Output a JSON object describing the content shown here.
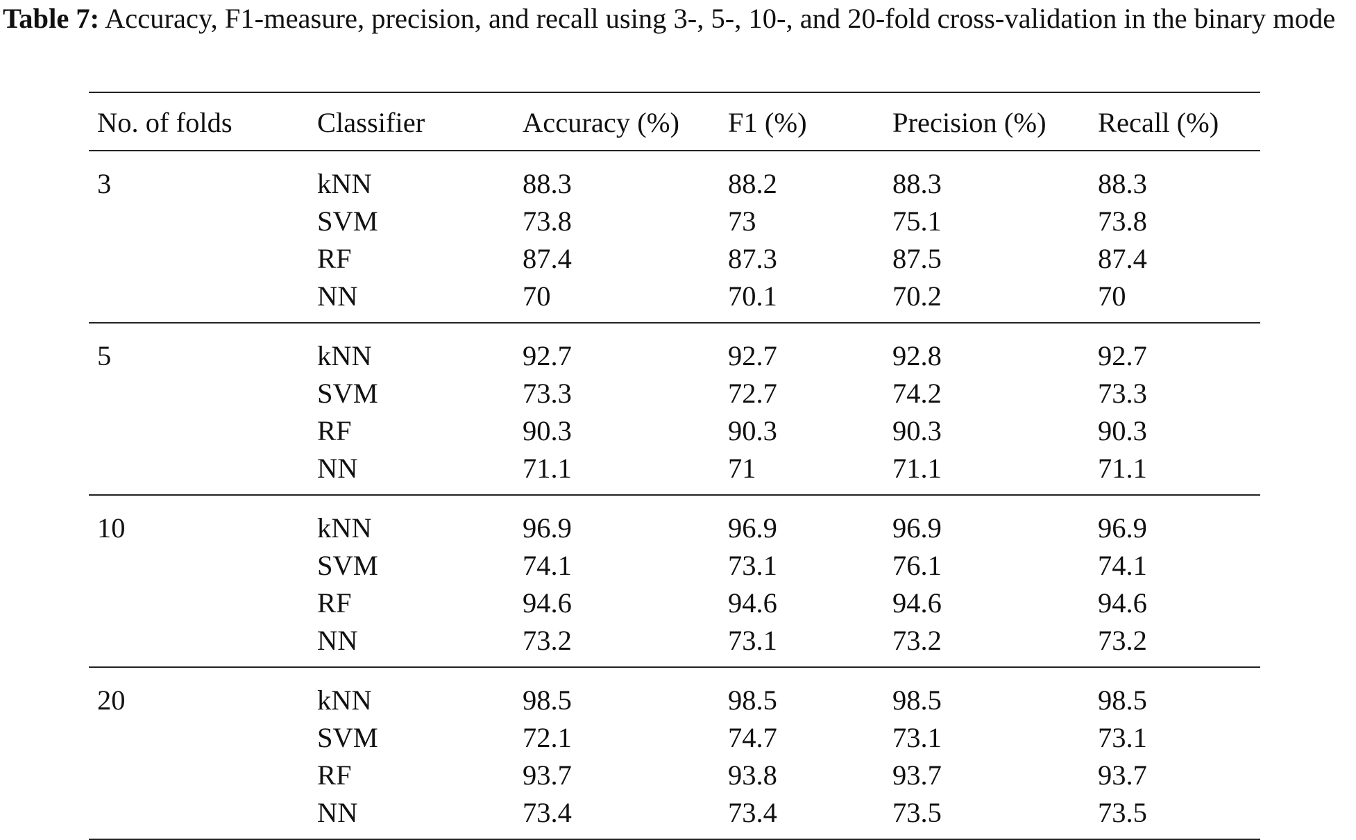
{
  "caption": {
    "label": "Table 7:",
    "text": " Accuracy, F1-measure, precision, and recall using 3-, 5-, 10-, and 20-fold cross-validation in the binary mode"
  },
  "table": {
    "headers": [
      "No. of folds",
      "Classifier",
      "Accuracy (%)",
      "F1 (%)",
      "Precision (%)",
      "Recall (%)"
    ],
    "groups": [
      {
        "folds": "3",
        "rows": [
          [
            "kNN",
            "88.3",
            "88.2",
            "88.3",
            "88.3"
          ],
          [
            "SVM",
            "73.8",
            "73",
            "75.1",
            "73.8"
          ],
          [
            "RF",
            "87.4",
            "87.3",
            "87.5",
            "87.4"
          ],
          [
            "NN",
            "70",
            "70.1",
            "70.2",
            "70"
          ]
        ]
      },
      {
        "folds": "5",
        "rows": [
          [
            "kNN",
            "92.7",
            "92.7",
            "92.8",
            "92.7"
          ],
          [
            "SVM",
            "73.3",
            "72.7",
            "74.2",
            "73.3"
          ],
          [
            "RF",
            "90.3",
            "90.3",
            "90.3",
            "90.3"
          ],
          [
            "NN",
            "71.1",
            "71",
            "71.1",
            "71.1"
          ]
        ]
      },
      {
        "folds": "10",
        "rows": [
          [
            "kNN",
            "96.9",
            "96.9",
            "96.9",
            "96.9"
          ],
          [
            "SVM",
            "74.1",
            "73.1",
            "76.1",
            "74.1"
          ],
          [
            "RF",
            "94.6",
            "94.6",
            "94.6",
            "94.6"
          ],
          [
            "NN",
            "73.2",
            "73.1",
            "73.2",
            "73.2"
          ]
        ]
      },
      {
        "folds": "20",
        "rows": [
          [
            "kNN",
            "98.5",
            "98.5",
            "98.5",
            "98.5"
          ],
          [
            "SVM",
            "72.1",
            "74.7",
            "73.1",
            "73.1"
          ],
          [
            "RF",
            "93.7",
            "93.8",
            "93.7",
            "93.7"
          ],
          [
            "NN",
            "73.4",
            "73.4",
            "73.5",
            "73.5"
          ]
        ]
      }
    ]
  }
}
